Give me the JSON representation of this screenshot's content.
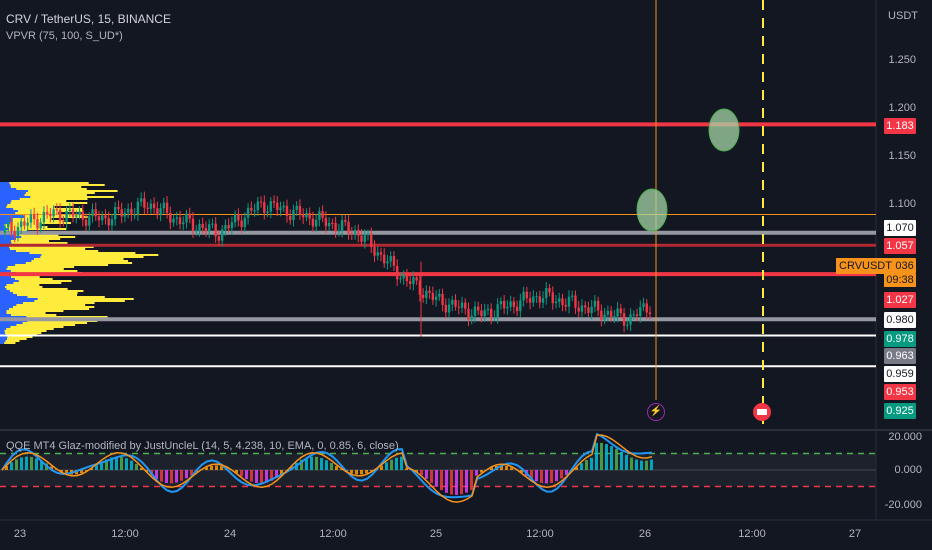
{
  "header": {
    "symbol_line": "CRV / TetherUS, 15, BINANCE",
    "indicator_line": "VPVR (75, 100, S_UD*)"
  },
  "price_axis": {
    "unit": "USDT",
    "ticks": [
      "1.250",
      "1.200",
      "1.150",
      "1.100"
    ]
  },
  "price_badges": [
    {
      "value": "1.183",
      "bg": "#f23645",
      "fg": "#ffffff"
    },
    {
      "value": "1.070",
      "bg": "#ffffff",
      "fg": "#131722"
    },
    {
      "value": "1.057",
      "bg": "#f23645",
      "fg": "#ffffff"
    },
    {
      "value": "1.036",
      "bg": "#f7931a",
      "fg": "#131722"
    },
    {
      "value": "1.027",
      "bg": "#f23645",
      "fg": "#ffffff"
    },
    {
      "value": "0.980",
      "bg": "#ffffff",
      "fg": "#131722"
    },
    {
      "value": "0.978",
      "bg": "#089981",
      "fg": "#ffffff"
    },
    {
      "value": "0.963",
      "bg": "#787b86",
      "fg": "#ffffff"
    },
    {
      "value": "0.959",
      "bg": "#ffffff",
      "fg": "#131722"
    },
    {
      "value": "0.953",
      "bg": "#f23645",
      "fg": "#ffffff"
    },
    {
      "value": "0.925",
      "bg": "#089981",
      "fg": "#ffffff"
    }
  ],
  "symbol_label": "CRVUSDT",
  "countdown": "09:38",
  "time_axis": [
    "23",
    "12:00",
    "24",
    "12:00",
    "25",
    "12:00",
    "26",
    "12:00",
    "27"
  ],
  "indicator": {
    "title": "QQE MT4 Glaz-modified by JustUncleL (14, 5, 4.238, 10, EMA, 0, 0.85, 6, close)",
    "ticks": [
      "20.000",
      "0.000",
      "-20.000"
    ]
  },
  "events": {
    "lightning_icon": "⚡",
    "flag_icon": "us-flag"
  },
  "colors": {
    "background": "#131722",
    "up": "#089981",
    "down": "#f23645",
    "vp_up": "#2962ff",
    "vp_down": "#ffeb3b",
    "level_red": "#f23645",
    "level_orange": "#f7931a",
    "level_gray": "#9598a1",
    "dashed_yellow": "#ffeb3b",
    "circle_fill": "#a5d6a7"
  },
  "chart_data": {
    "type": "candlestick",
    "title": "CRV / TetherUS, 15, BINANCE",
    "ylim": [
      0.9,
      1.27
    ],
    "y_ticks": [
      1.25,
      1.2,
      1.15,
      1.1
    ],
    "x_ticks": [
      "23",
      "12:00",
      "24",
      "12:00",
      "25",
      "12:00",
      "26",
      "12:00",
      "27"
    ],
    "horizontal_levels": [
      {
        "price": 1.183,
        "color": "red"
      },
      {
        "price": 1.089,
        "color": "orange"
      },
      {
        "price": 1.07,
        "color": "gray"
      },
      {
        "price": 1.057,
        "color": "darkred"
      },
      {
        "price": 1.027,
        "color": "red"
      },
      {
        "price": 0.98,
        "color": "gray"
      },
      {
        "price": 0.963,
        "color": "white"
      },
      {
        "price": 0.931,
        "color": "white"
      }
    ],
    "close_path": [
      {
        "t": 0,
        "p": 1.07
      },
      {
        "t": 0.06,
        "p": 1.09
      },
      {
        "t": 0.12,
        "p": 1.085
      },
      {
        "t": 0.17,
        "p": 1.1
      },
      {
        "t": 0.2,
        "p": 1.085
      },
      {
        "t": 0.25,
        "p": 1.07
      },
      {
        "t": 0.3,
        "p": 1.1
      },
      {
        "t": 0.36,
        "p": 1.085
      },
      {
        "t": 0.41,
        "p": 1.07
      },
      {
        "t": 0.46,
        "p": 1.025
      },
      {
        "t": 0.5,
        "p": 1.0
      },
      {
        "t": 0.55,
        "p": 0.985
      },
      {
        "t": 0.62,
        "p": 1.005
      },
      {
        "t": 0.72,
        "p": 0.98
      },
      {
        "t": 0.79,
        "p": 1.02
      },
      {
        "t": 0.85,
        "p": 1.04
      },
      {
        "t": 0.88,
        "p": 1.03
      },
      {
        "t": 0.92,
        "p": 1.04
      }
    ],
    "last_price": 1.036,
    "indicator": {
      "name": "QQE MT4 Glaz-modified",
      "ylim": [
        -20,
        20
      ],
      "upper_band": 10,
      "lower_band": -10
    }
  }
}
